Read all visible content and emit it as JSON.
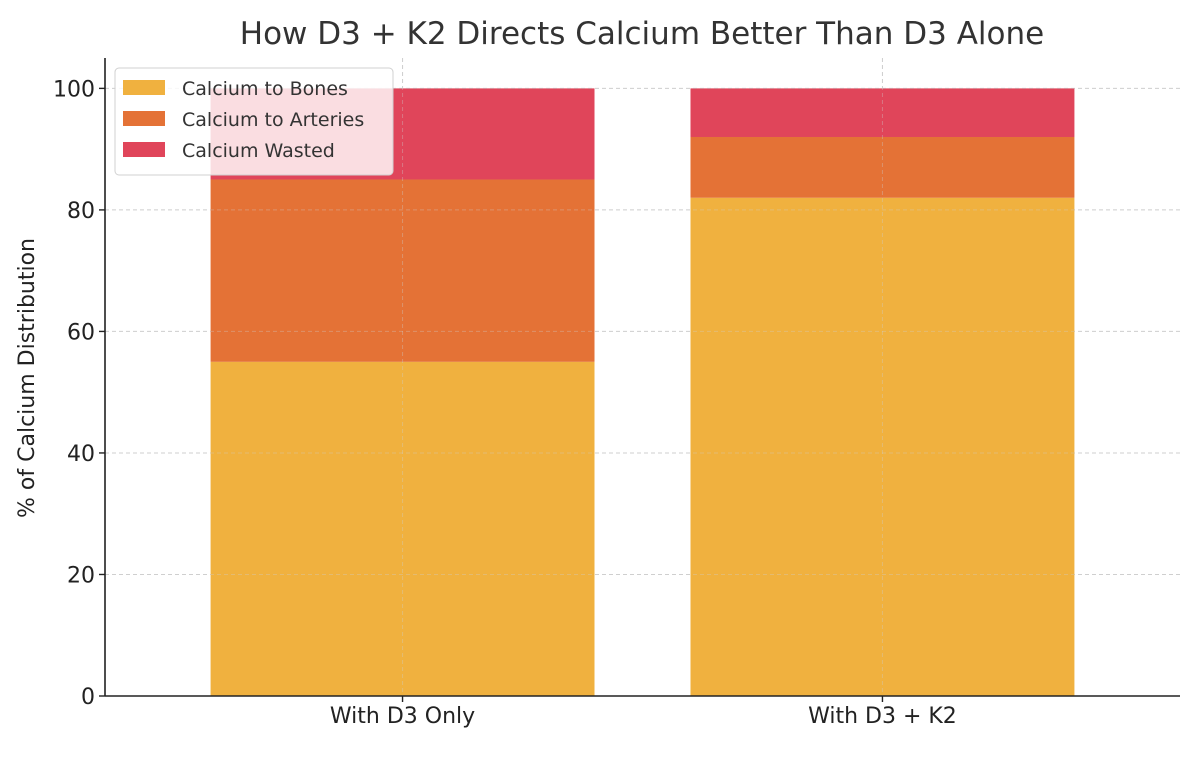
{
  "chart_data": {
    "type": "bar",
    "stacked": true,
    "title": "How D3 + K2 Directs Calcium Better Than D3 Alone",
    "xlabel": "",
    "ylabel": "% of Calcium Distribution",
    "categories": [
      "With D3 Only",
      "With D3 + K2"
    ],
    "series": [
      {
        "name": "Calcium to Bones",
        "values": [
          55,
          82
        ],
        "color": "#F0B13F"
      },
      {
        "name": "Calcium to Arteries",
        "values": [
          30,
          10
        ],
        "color": "#E47236"
      },
      {
        "name": "Calcium Wasted",
        "values": [
          15,
          8
        ],
        "color": "#E0455A"
      }
    ],
    "ylim": [
      0,
      105
    ],
    "yticks": [
      0,
      20,
      40,
      60,
      80,
      100
    ],
    "grid": true,
    "legend": "top-left"
  }
}
